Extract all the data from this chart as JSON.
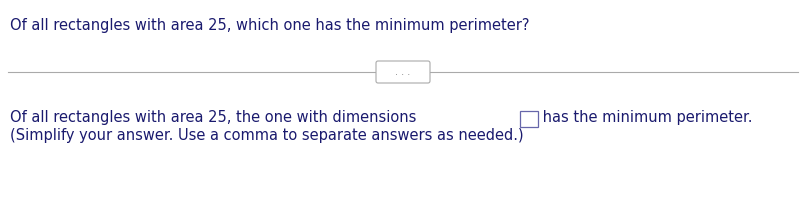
{
  "bg_color": "#ffffff",
  "text_color": "#1a1a6e",
  "question_text": "Of all rectangles with area 25, which one has the minimum perimeter?",
  "answer_line1_before": "Of all rectangles with area 25, the one with dimensions ",
  "answer_line1_after": " has the minimum perimeter.",
  "answer_line2": "(Simplify your answer. Use a comma to separate answers as needed.)",
  "question_fontsize": 10.5,
  "answer_fontsize": 10.5,
  "text_font": "DejaVu Sans",
  "divider_color": "#aaaaaa",
  "dots_color": "#888888",
  "box_edge_color": "#6666aa"
}
